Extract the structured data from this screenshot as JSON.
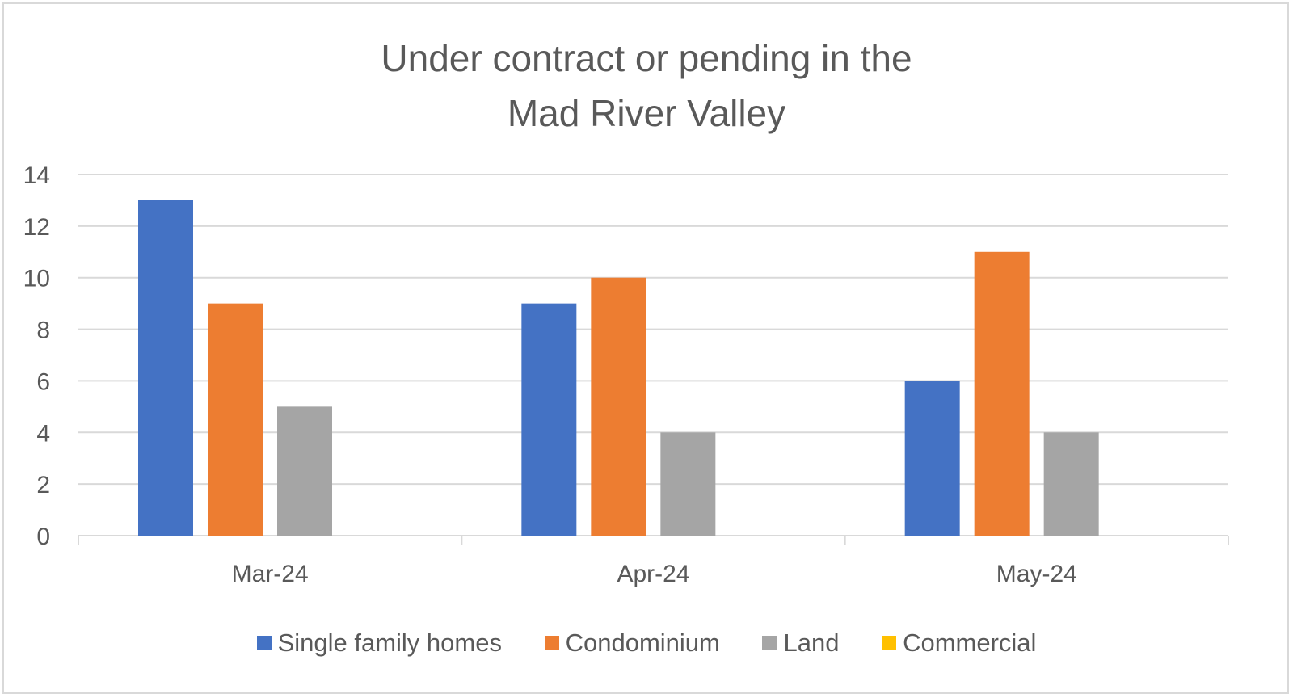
{
  "chart_data": {
    "type": "bar",
    "title_lines": [
      "Under contract or pending in the",
      "Mad River Valley"
    ],
    "categories": [
      "Mar-24",
      "Apr-24",
      "May-24"
    ],
    "series": [
      {
        "name": "Single family homes",
        "color": "#4472c4",
        "values": [
          13,
          9,
          6
        ]
      },
      {
        "name": "Condominium",
        "color": "#ed7d31",
        "values": [
          9,
          10,
          11
        ]
      },
      {
        "name": "Land",
        "color": "#a5a5a5",
        "values": [
          5,
          4,
          4
        ]
      },
      {
        "name": "Commercial",
        "color": "#ffc000",
        "values": [
          0,
          0,
          0
        ]
      }
    ],
    "ylim": [
      0,
      14
    ],
    "yticks": [
      "0",
      "2",
      "4",
      "6",
      "8",
      "10",
      "12",
      "14"
    ],
    "grid": true,
    "legend_position": "bottom"
  }
}
